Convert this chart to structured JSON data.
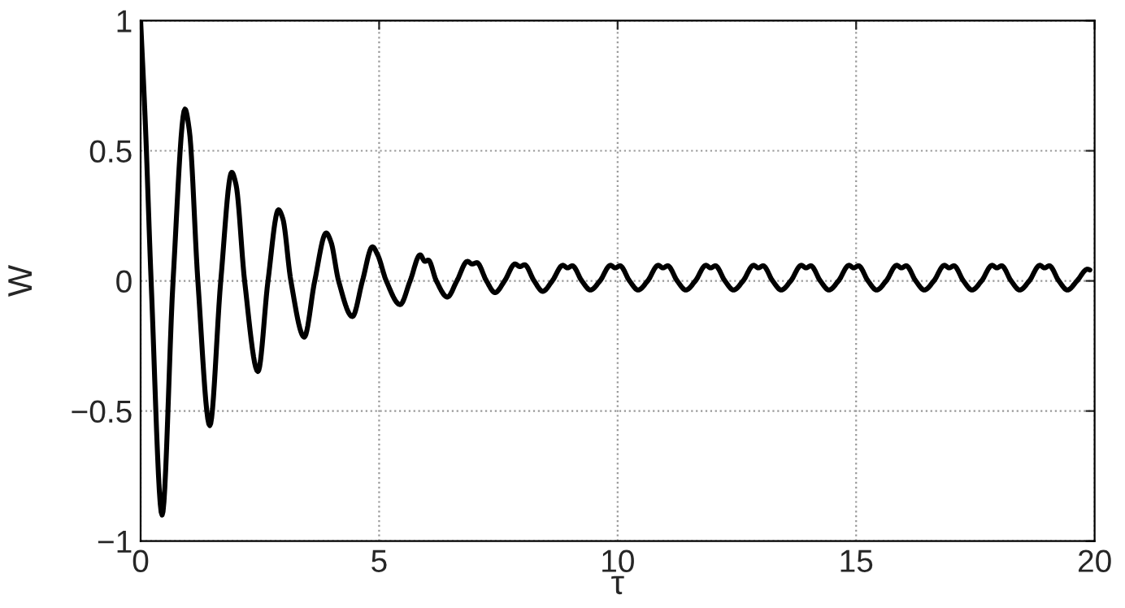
{
  "chart_data": {
    "type": "line",
    "xlabel": "τ",
    "ylabel": "W",
    "xlim": [
      0,
      20
    ],
    "xticks": [
      0,
      5,
      10,
      15,
      20
    ],
    "ylim": [
      -1,
      1
    ],
    "yticks": [
      {
        "value": -1,
        "label": "−1"
      },
      {
        "value": -0.5,
        "label": "−0.5"
      },
      0,
      0.5,
      1
    ],
    "grid": true,
    "line_style": "solid",
    "marker": "none",
    "series": [
      {
        "color": "#000000",
        "x": [
          0,
          0.1,
          0.22,
          0.45,
          0.68,
          0.93,
          1.02,
          1.2,
          1.45,
          1.68,
          1.91,
          2.0,
          2.18,
          2.46,
          2.67,
          2.89,
          2.98,
          3.15,
          3.43,
          3.65,
          3.89,
          3.99,
          4.15,
          4.44,
          4.65,
          4.86,
          4.97,
          5.15,
          5.44,
          5.65,
          5.86,
          5.96,
          6.03,
          6.2,
          6.43,
          6.63,
          6.85,
          6.95,
          7.05,
          7.25,
          7.43,
          7.63,
          7.85,
          7.95,
          8.05,
          8.25,
          8.43,
          8.63,
          8.85,
          8.95,
          9.05,
          9.25,
          9.43,
          9.63,
          9.85,
          9.95,
          10.05,
          10.25,
          10.43,
          10.63,
          10.85,
          10.95,
          11.05,
          11.25,
          11.43,
          11.63,
          11.85,
          11.95,
          12.05,
          12.25,
          12.43,
          12.63,
          12.85,
          12.95,
          13.05,
          13.25,
          13.43,
          13.63,
          13.85,
          13.95,
          14.05,
          14.25,
          14.43,
          14.63,
          14.85,
          14.95,
          15.05,
          15.25,
          15.43,
          15.63,
          15.85,
          15.95,
          16.05,
          16.25,
          16.43,
          16.63,
          16.85,
          16.95,
          17.05,
          17.25,
          17.43,
          17.63,
          17.85,
          17.95,
          18.05,
          18.25,
          18.43,
          18.63,
          18.85,
          18.95,
          19.05,
          19.25,
          19.43,
          19.63,
          19.85,
          19.9
        ],
        "values": [
          1.0,
          0.6,
          0.0,
          -0.9,
          0.0,
          0.66,
          0.58,
          0.0,
          -0.556,
          0.0,
          0.417,
          0.37,
          0.0,
          -0.348,
          0.0,
          0.273,
          0.24,
          0.0,
          -0.216,
          0.0,
          0.184,
          0.15,
          0.0,
          -0.137,
          0.0,
          0.131,
          0.1,
          0.0,
          -0.091,
          0.0,
          0.1,
          0.075,
          0.08,
          0.0,
          -0.062,
          0.0,
          0.075,
          0.065,
          0.07,
          0.0,
          -0.045,
          0.0,
          0.065,
          0.055,
          0.062,
          0.0,
          -0.04,
          0.0,
          0.06,
          0.05,
          0.058,
          0.0,
          -0.035,
          0.0,
          0.06,
          0.05,
          0.058,
          0.0,
          -0.035,
          0.0,
          0.06,
          0.05,
          0.058,
          0.0,
          -0.035,
          0.0,
          0.06,
          0.05,
          0.058,
          0.0,
          -0.035,
          0.0,
          0.06,
          0.05,
          0.058,
          0.0,
          -0.035,
          0.0,
          0.06,
          0.05,
          0.058,
          0.0,
          -0.035,
          0.0,
          0.06,
          0.05,
          0.058,
          0.0,
          -0.035,
          0.0,
          0.06,
          0.05,
          0.058,
          0.0,
          -0.035,
          0.0,
          0.06,
          0.05,
          0.058,
          0.0,
          -0.035,
          0.0,
          0.06,
          0.05,
          0.058,
          0.0,
          -0.035,
          0.0,
          0.06,
          0.05,
          0.058,
          0.0,
          -0.035,
          0.0,
          0.045,
          0.042
        ]
      }
    ]
  }
}
